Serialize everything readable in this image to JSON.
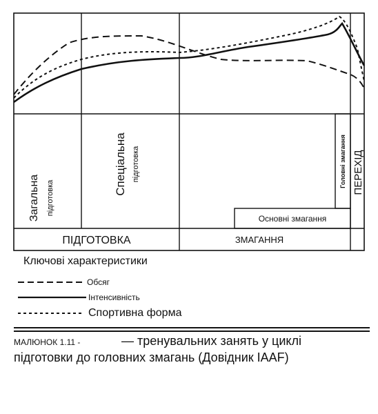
{
  "diagram": {
    "phases": {
      "preparation": "ПІДГОТОВКА",
      "competition": "ЗМАГАННЯ",
      "transition": "ПЕРЕХІД"
    },
    "sub_phases": {
      "general_line1": "Загальна",
      "general_line2": "підготовка",
      "special_line1": "Спеціальна",
      "special_line2": "підготовка",
      "main_competitions": "Основні змагання",
      "key_competitions": "Головні змагання"
    },
    "legend": {
      "title": "Ключові характеристики",
      "volume": "Обсяг",
      "intensity": "Інтенсивність",
      "form": "Спортивна форма"
    },
    "caption": {
      "prefix": "МАЛЮНОК 1.11 -",
      "dash": "—",
      "line1": "тренувальних занять у циклі",
      "line2": "підготовки до головних змагань (Довідник IAAF)"
    }
  }
}
